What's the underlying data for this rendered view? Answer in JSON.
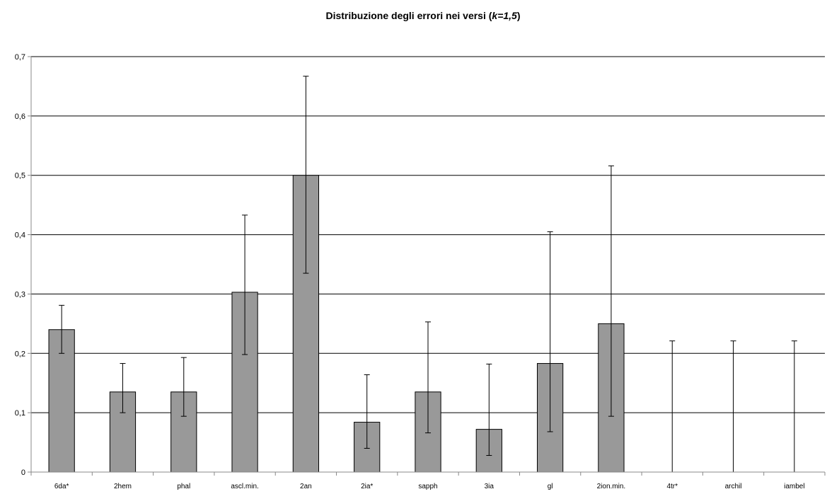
{
  "chart_data": {
    "type": "bar",
    "title_prefix": "Distribuzione degli errori nei versi (",
    "title_italic": "k=1,5",
    "title_suffix": ")",
    "xlabel": "",
    "ylabel": "",
    "ylim": [
      0,
      0.7
    ],
    "yticks": [
      "0",
      "0,1",
      "0,2",
      "0,3",
      "0,4",
      "0,5",
      "0,6",
      "0,7"
    ],
    "grid": true,
    "legend": "none",
    "categories": [
      "6da*",
      "2hem",
      "phal",
      "ascl.min.",
      "2an",
      "2ia*",
      "sapph",
      "3ia",
      "gl",
      "2ion.min.",
      "4tr*",
      "archil",
      "iambel"
    ],
    "values": [
      0.24,
      0.135,
      0.135,
      0.303,
      0.5,
      0.084,
      0.135,
      0.072,
      0.183,
      0.25,
      0,
      0,
      0
    ],
    "error_low": [
      0.2,
      0.1,
      0.094,
      0.198,
      0.335,
      0.04,
      0.066,
      0.028,
      0.068,
      0.094,
      0,
      0,
      0
    ],
    "error_high": [
      0.281,
      0.183,
      0.193,
      0.433,
      0.667,
      0.164,
      0.253,
      0.182,
      0.405,
      0.516,
      0.221,
      0.221,
      0.221
    ],
    "colors": {
      "bar": "#999999",
      "bar_edge": "#000000",
      "error_bar": "#000000",
      "grid": "#000000",
      "axis": "#888888"
    }
  }
}
